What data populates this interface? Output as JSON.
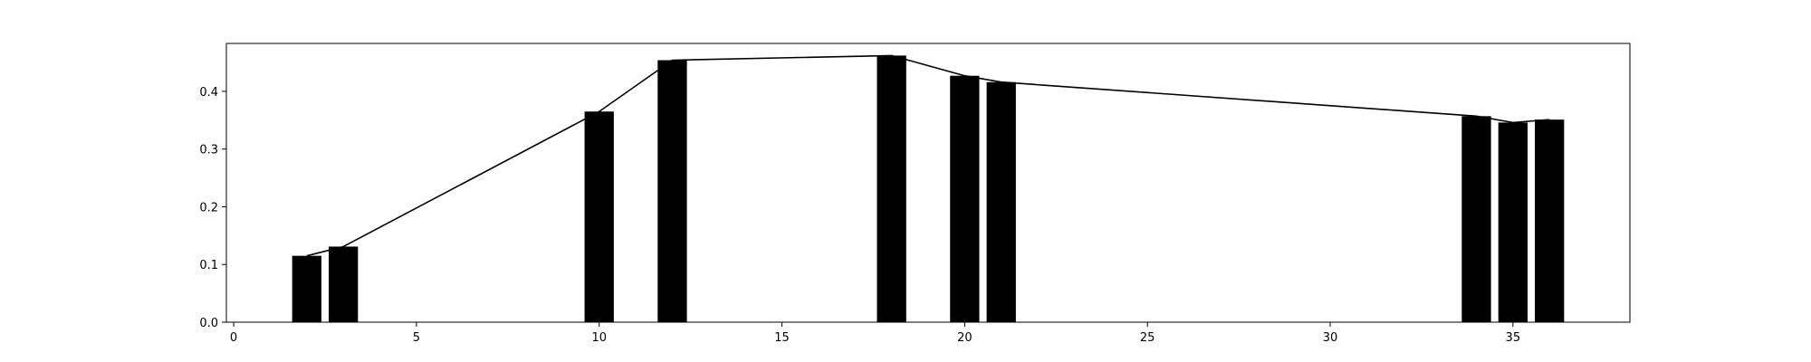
{
  "chart_data": {
    "type": "bar",
    "title": "",
    "xlabel": "",
    "ylabel": "",
    "xlim": [
      -0.2,
      38.2
    ],
    "ylim": [
      0,
      0.483
    ],
    "grid": false,
    "legend": "none",
    "x_ticks": [
      0,
      5,
      10,
      15,
      20,
      25,
      30,
      35
    ],
    "y_ticks": [
      0.0,
      0.1,
      0.2,
      0.3,
      0.4
    ],
    "y_tick_format": 1,
    "bar_width": 0.8,
    "bar_color": "#000000",
    "line_color": "#000000",
    "series": [
      {
        "type": "bar",
        "x": [
          2,
          3,
          10,
          12,
          18,
          20,
          21,
          34,
          35,
          36
        ],
        "values": [
          0.115,
          0.131,
          0.365,
          0.454,
          0.462,
          0.427,
          0.416,
          0.357,
          0.346,
          0.351
        ]
      },
      {
        "type": "line",
        "x": [
          2,
          3,
          10,
          12,
          18,
          20,
          21,
          34,
          35,
          36
        ],
        "values": [
          0.115,
          0.131,
          0.365,
          0.454,
          0.462,
          0.427,
          0.416,
          0.357,
          0.346,
          0.351
        ]
      }
    ]
  }
}
